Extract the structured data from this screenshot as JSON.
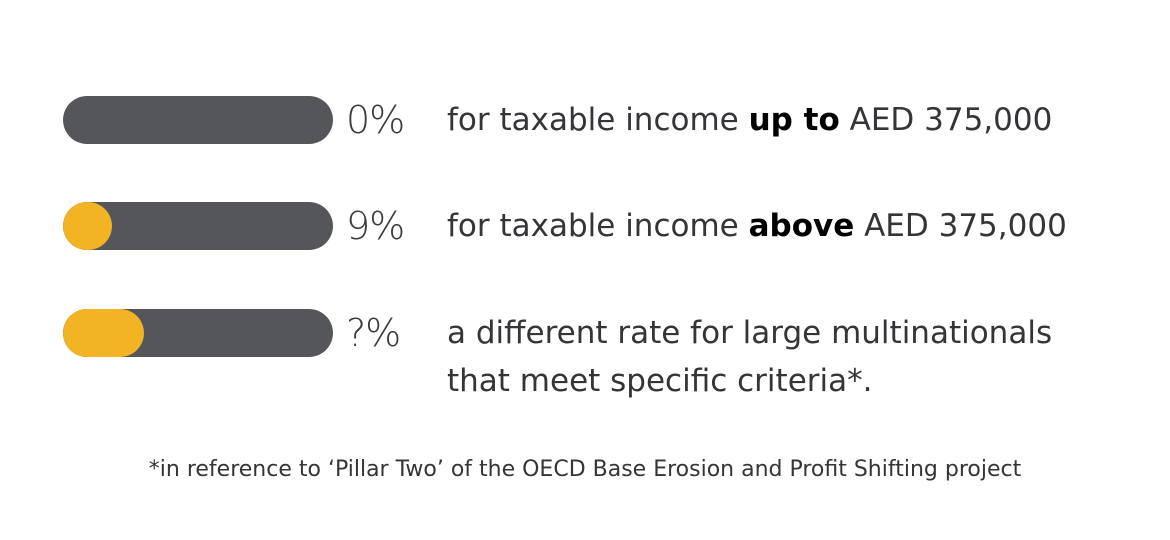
{
  "colors": {
    "bar_track": "#55565a",
    "bar_fill": "#f2b325",
    "text": "#333538"
  },
  "tax_rows": [
    {
      "rate": "0%",
      "fill_fraction": 0.0,
      "desc_before": "for taxable income ",
      "desc_bold": "up to",
      "desc_after": " AED 375,000"
    },
    {
      "rate": "9%",
      "fill_fraction": 0.18,
      "desc_before": "for taxable income ",
      "desc_bold": "above",
      "desc_after": " AED 375,000"
    },
    {
      "rate": "?%",
      "fill_fraction": 0.3,
      "desc_line1": "a different rate for large multinationals",
      "desc_line2": "that meet specific criteria*."
    }
  ],
  "footnote": "*in reference to ‘Pillar Two’ of the OECD Base Erosion and Profit Shifting project"
}
